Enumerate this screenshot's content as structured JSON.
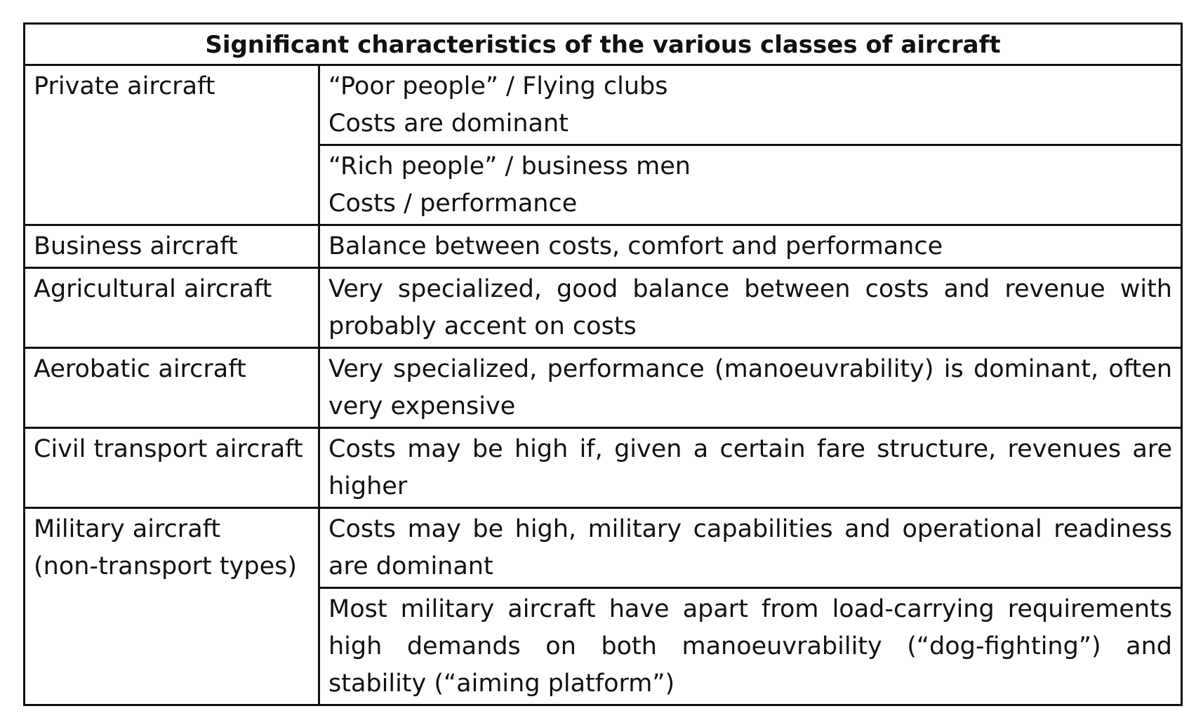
{
  "title": "Significant characteristics of the various classes of aircraft",
  "rows": [
    {
      "class_lines": [
        "Private aircraft"
      ],
      "descriptions": [
        [
          "“Poor people” / Flying clubs",
          "Costs are dominant"
        ],
        [
          "“Rich people” / business men",
          "Costs / performance"
        ]
      ]
    },
    {
      "class_lines": [
        "Business aircraft"
      ],
      "descriptions": [
        [
          "Balance between costs, comfort and performance"
        ]
      ]
    },
    {
      "class_lines": [
        "Agricultural aircraft"
      ],
      "descriptions": [
        [
          "Very specialized, good balance between costs and revenue with probably accent on costs"
        ]
      ]
    },
    {
      "class_lines": [
        "Aerobatic aircraft"
      ],
      "descriptions": [
        [
          "Very specialized, performance (manoeuvrability) is dominant, often very expensive"
        ]
      ]
    },
    {
      "class_lines": [
        "Civil transport aircraft"
      ],
      "descriptions": [
        [
          "Costs may be high if, given a certain fare structure, revenues are higher"
        ]
      ]
    },
    {
      "class_lines": [
        "Military aircraft",
        "(non-transport types)"
      ],
      "descriptions": [
        [
          "Costs may be high, military capabilities and operational readiness are dominant"
        ],
        [
          "Most military aircraft have apart from load-carrying requirements high demands on both manoeuvrability (“dog-fighting”) and stability (“aiming platform”)"
        ]
      ]
    }
  ]
}
